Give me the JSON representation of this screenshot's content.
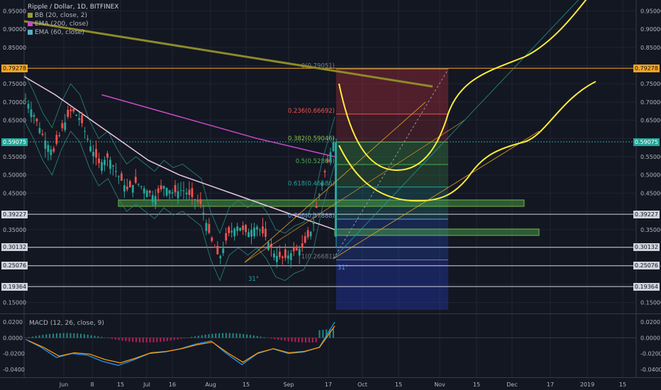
{
  "legend": {
    "symbol": "Ripple / Dollar, 1D, BITFINEX",
    "indicators": [
      {
        "label": "BB (20, close, 2)",
        "color": "#9b9b3a"
      },
      {
        "label": "EMA (200, close)",
        "color": "#c74bc7"
      },
      {
        "label": "EMA (60, close)",
        "color": "#5ab0c4"
      }
    ]
  },
  "macd_label": "MACD (12, 26, close, 9)",
  "price_axis": {
    "ticks": [
      "0.95000",
      "0.90000",
      "0.85000",
      "0.75000",
      "0.70000",
      "0.65000",
      "0.55000",
      "0.50000",
      "0.45000",
      "0.35000",
      "0.25076",
      "0.15000"
    ],
    "macd_ticks": [
      "0.0200",
      "0.0000",
      "-0.0200",
      "-0.0400"
    ]
  },
  "markers": {
    "left": [
      {
        "label": "0.79278",
        "bg": "#f5a623",
        "fg": "#131722"
      },
      {
        "label": "0.59075",
        "bg": "#26a69a",
        "fg": "#ffffff"
      },
      {
        "label": "0.39227",
        "bg": "#d1d4dc",
        "fg": "#131722"
      },
      {
        "label": "0.30132",
        "bg": "#d1d4dc",
        "fg": "#131722"
      },
      {
        "label": "0.25076",
        "bg": "#d1d4dc",
        "fg": "#131722"
      },
      {
        "label": "0.19364",
        "bg": "#d1d4dc",
        "fg": "#131722"
      }
    ],
    "right": [
      {
        "label": "0.79278",
        "bg": "#f5a623",
        "fg": "#131722"
      },
      {
        "label": "0.59075",
        "bg": "#26a69a",
        "fg": "#ffffff"
      },
      {
        "label": "0.39227",
        "bg": "#d1d4dc",
        "fg": "#131722"
      },
      {
        "label": "0.30132",
        "bg": "#d1d4dc",
        "fg": "#131722"
      },
      {
        "label": "0.25076",
        "bg": "#d1d4dc",
        "fg": "#131722"
      },
      {
        "label": "0.19364",
        "bg": "#d1d4dc",
        "fg": "#131722"
      }
    ]
  },
  "fib_levels": [
    {
      "label": "0(0.79051)",
      "value": 0.79051,
      "color": "#787b86"
    },
    {
      "label": "0.236(0.66692)",
      "value": 0.66692,
      "color": "#ef5350"
    },
    {
      "label": "0.382(0.59046)",
      "value": 0.59046,
      "color": "#8bc34a"
    },
    {
      "label": "0.5(0.52866)",
      "value": 0.52866,
      "color": "#4caf50"
    },
    {
      "label": "0.618(0.46686)",
      "value": 0.46686,
      "color": "#26a69a"
    },
    {
      "label": "0.786(0.37888)",
      "value": 0.37888,
      "color": "#5b9cf6"
    },
    {
      "label": "1(0.26681)",
      "value": 0.26681,
      "color": "#787b86"
    }
  ],
  "angle_labels": [
    "31°",
    "31°"
  ],
  "chart_data": {
    "type": "candlestick",
    "title": "Ripple / Dollar, 1D, BITFINEX",
    "x_ticks": [
      "Jun",
      "8",
      "15",
      "Jul",
      "16",
      "Aug",
      "15",
      "Sep",
      "17",
      "Oct",
      "15",
      "Nov",
      "15",
      "Dec",
      "17",
      "2019",
      "15"
    ],
    "y_range": [
      0.12,
      0.98
    ],
    "macd_range": [
      -0.05,
      0.03
    ],
    "close_path": [
      [
        0.0,
        0.71
      ],
      [
        0.03,
        0.66
      ],
      [
        0.06,
        0.6
      ],
      [
        0.09,
        0.56
      ],
      [
        0.12,
        0.63
      ],
      [
        0.15,
        0.68
      ],
      [
        0.18,
        0.65
      ],
      [
        0.21,
        0.58
      ],
      [
        0.24,
        0.53
      ],
      [
        0.27,
        0.55
      ],
      [
        0.3,
        0.5
      ],
      [
        0.33,
        0.46
      ],
      [
        0.36,
        0.48
      ],
      [
        0.39,
        0.46
      ],
      [
        0.42,
        0.44
      ],
      [
        0.45,
        0.47
      ],
      [
        0.48,
        0.45
      ],
      [
        0.51,
        0.46
      ],
      [
        0.54,
        0.44
      ],
      [
        0.57,
        0.42
      ],
      [
        0.6,
        0.33
      ],
      [
        0.63,
        0.27
      ],
      [
        0.66,
        0.34
      ],
      [
        0.69,
        0.36
      ],
      [
        0.72,
        0.34
      ],
      [
        0.75,
        0.36
      ],
      [
        0.78,
        0.33
      ],
      [
        0.81,
        0.28
      ],
      [
        0.84,
        0.27
      ],
      [
        0.87,
        0.29
      ],
      [
        0.9,
        0.3
      ],
      [
        0.93,
        0.35
      ],
      [
        0.96,
        0.47
      ],
      [
        1.0,
        0.59
      ]
    ],
    "macd_path": [
      [
        0.0,
        -0.002
      ],
      [
        0.05,
        -0.012
      ],
      [
        0.1,
        -0.025
      ],
      [
        0.15,
        -0.02
      ],
      [
        0.2,
        -0.022
      ],
      [
        0.25,
        -0.03
      ],
      [
        0.3,
        -0.035
      ],
      [
        0.35,
        -0.028
      ],
      [
        0.4,
        -0.02
      ],
      [
        0.45,
        -0.018
      ],
      [
        0.5,
        -0.014
      ],
      [
        0.55,
        -0.008
      ],
      [
        0.6,
        -0.004
      ],
      [
        0.65,
        -0.02
      ],
      [
        0.7,
        -0.034
      ],
      [
        0.75,
        -0.02
      ],
      [
        0.8,
        -0.014
      ],
      [
        0.85,
        -0.02
      ],
      [
        0.9,
        -0.018
      ],
      [
        0.95,
        -0.012
      ],
      [
        1.0,
        0.02
      ]
    ],
    "horizontal_levels": [
      0.79278,
      0.59075,
      0.39227,
      0.30132,
      0.25076,
      0.19364
    ]
  }
}
